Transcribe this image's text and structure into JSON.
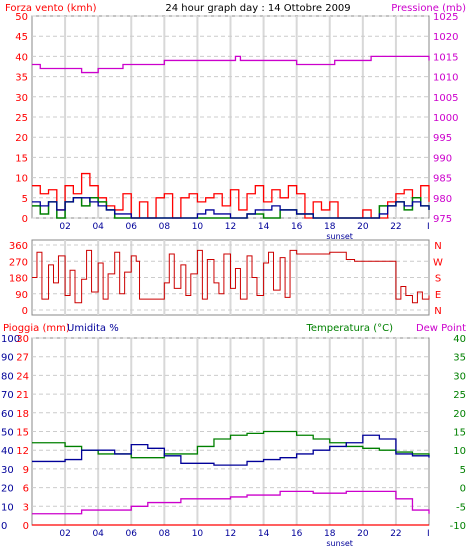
{
  "chart_data": [
    {
      "type": "line",
      "title": "24 hour graph day : 14 Ottobre 2009",
      "ylabel_left": "Forza vento (kmh)",
      "ylabel_right": "Pressione (mb)",
      "xlim": [
        0,
        24
      ],
      "ylim_left": [
        0,
        50
      ],
      "ylim_right": [
        975,
        1025
      ],
      "yticks_left": [
        0,
        5,
        10,
        15,
        20,
        25,
        30,
        35,
        40,
        45,
        50
      ],
      "yticks_right": [
        975,
        980,
        985,
        990,
        995,
        1000,
        1005,
        1010,
        1015,
        1020,
        1025
      ],
      "xticks": [
        2,
        4,
        6,
        8,
        10,
        12,
        14,
        16,
        18,
        20,
        22
      ],
      "xtick_labels": [
        "02",
        "04",
        "06",
        "08",
        "10",
        "12",
        "14",
        "16",
        "18",
        "20",
        "22"
      ],
      "xmark_label": "sunset",
      "xmark_at": 18.6,
      "end_tick_label": "I",
      "grid": true,
      "series": [
        {
          "role": "pressione",
          "color": "#cc00cc",
          "x": [
            0,
            0.5,
            1,
            2,
            3,
            3.4,
            4,
            5,
            5.5,
            6,
            8,
            10,
            11,
            12,
            12.3,
            12.6,
            14,
            15.5,
            16,
            17.5,
            18.3,
            19,
            20.5,
            21.5,
            22.5,
            23.5,
            24
          ],
          "y": [
            1013,
            1012,
            1012,
            1012,
            1011,
            1011,
            1012,
            1012,
            1013,
            1013,
            1014,
            1014,
            1014,
            1014,
            1015,
            1014,
            1014,
            1014,
            1013,
            1013,
            1014,
            1014,
            1015,
            1015,
            1015,
            1015,
            1014
          ]
        },
        {
          "role": "gust",
          "color": "#ff0000",
          "x": [
            0,
            0.5,
            1,
            1.5,
            2,
            2.5,
            3,
            3.5,
            4,
            4.5,
            5,
            5.5,
            6,
            6.5,
            7,
            7.5,
            8,
            8.5,
            9,
            9.5,
            10,
            10.5,
            11,
            11.5,
            12,
            12.5,
            13,
            13.5,
            14,
            14.5,
            15,
            15.5,
            16,
            16.5,
            17,
            17.5,
            18,
            18.5,
            19,
            19.5,
            20,
            20.5,
            21,
            21.5,
            22,
            22.5,
            23,
            23.5,
            24
          ],
          "y": [
            8,
            6,
            7,
            2,
            8,
            6,
            11,
            8,
            5,
            3,
            2,
            6,
            0,
            4,
            0,
            5,
            6,
            0,
            5,
            6,
            4,
            5,
            6,
            3,
            7,
            2,
            6,
            8,
            4,
            7,
            5,
            8,
            6,
            0,
            4,
            2,
            4,
            0,
            0,
            0,
            2,
            0,
            0,
            4,
            6,
            7,
            5,
            8,
            4
          ]
        },
        {
          "role": "wind",
          "color": "#008000",
          "x": [
            0,
            0.5,
            1,
            1.5,
            2,
            2.5,
            3,
            3.5,
            4,
            4.5,
            5,
            5.5,
            6,
            7,
            8,
            9,
            10,
            11,
            12,
            13,
            14,
            15,
            16,
            17,
            18,
            19,
            20,
            21,
            22,
            22.5,
            23,
            23.5,
            24
          ],
          "y": [
            3,
            1,
            4,
            0,
            4,
            5,
            3,
            5,
            4,
            2,
            0,
            0,
            0,
            0,
            0,
            0,
            0,
            0,
            0,
            1,
            0,
            2,
            1,
            0,
            0,
            0,
            0,
            3,
            4,
            2,
            5,
            3,
            2
          ]
        },
        {
          "role": "wind-avg",
          "color": "#000099",
          "x": [
            0,
            0.5,
            1,
            1.5,
            2,
            2.5,
            3,
            3.5,
            4,
            4.5,
            5,
            5.5,
            6,
            7,
            8,
            9,
            10,
            10.5,
            11,
            12,
            13,
            13.5,
            14,
            14.5,
            15,
            16,
            17,
            18,
            19,
            20,
            21,
            21.5,
            22,
            22.5,
            23,
            23.5,
            24
          ],
          "y": [
            4,
            3,
            4,
            2,
            4,
            5,
            5,
            4,
            3,
            2,
            1,
            1,
            0,
            0,
            0,
            0,
            1,
            2,
            1,
            0,
            1,
            2,
            2,
            3,
            2,
            1,
            0,
            0,
            0,
            0,
            1,
            3,
            4,
            3,
            4,
            3,
            2
          ]
        }
      ]
    },
    {
      "type": "line",
      "ylabel_right_letters": [
        "N",
        "W",
        "S",
        "E",
        "N"
      ],
      "xlim": [
        0,
        24
      ],
      "ylim": [
        0,
        360
      ],
      "yticks": [
        0,
        90,
        180,
        270,
        360
      ],
      "grid": true,
      "series": [
        {
          "role": "direzione",
          "color": "#cc0000",
          "x": [
            0,
            0.3,
            0.6,
            1,
            1.3,
            1.6,
            2,
            2.3,
            2.6,
            3,
            3.3,
            3.6,
            4,
            4.3,
            4.6,
            5,
            5.3,
            5.6,
            6,
            6.3,
            6.5,
            7.5,
            8,
            8.3,
            8.6,
            9,
            9.3,
            9.6,
            10,
            10.3,
            10.6,
            11,
            11.3,
            11.6,
            12,
            12.3,
            12.6,
            13,
            13.3,
            13.6,
            14,
            14.3,
            14.6,
            15,
            15.3,
            15.6,
            16,
            16.5,
            17,
            18,
            19,
            19.5,
            20,
            21,
            21.5,
            22,
            22.3,
            22.6,
            23,
            23.3,
            23.6,
            24
          ],
          "y": [
            180,
            320,
            60,
            250,
            150,
            300,
            80,
            220,
            40,
            170,
            330,
            100,
            260,
            60,
            200,
            320,
            90,
            210,
            300,
            270,
            60,
            60,
            150,
            310,
            120,
            250,
            80,
            200,
            330,
            60,
            280,
            150,
            90,
            310,
            120,
            230,
            60,
            300,
            180,
            80,
            260,
            320,
            110,
            290,
            70,
            330,
            310,
            310,
            310,
            320,
            280,
            270,
            270,
            270,
            270,
            60,
            130,
            80,
            40,
            100,
            60,
            80
          ]
        }
      ]
    },
    {
      "type": "line",
      "ylabel_left": "Pioggia (mm)",
      "ylabel_left2": "Umidita %",
      "ylabel_right": "Temperatura (°C)",
      "ylabel_right2": "Dew Point",
      "xlim": [
        0,
        24
      ],
      "ylim_temp": [
        -10,
        40
      ],
      "ylim_hum": [
        0,
        100
      ],
      "ylim_rain": [
        0,
        30
      ],
      "yticks_temp": [
        -10,
        -5,
        0,
        5,
        10,
        15,
        20,
        25,
        30,
        35,
        40
      ],
      "yticks_hum": [
        0,
        10,
        20,
        30,
        40,
        50,
        60,
        70,
        80,
        90,
        100
      ],
      "yticks_rain": [
        0,
        3,
        6,
        9,
        12,
        15,
        18,
        21,
        24,
        27,
        30
      ],
      "xticks": [
        2,
        4,
        6,
        8,
        10,
        12,
        14,
        16,
        18,
        20,
        22
      ],
      "xtick_labels": [
        "02",
        "04",
        "06",
        "08",
        "10",
        "12",
        "14",
        "16",
        "18",
        "20",
        "22"
      ],
      "xmark_label": "sunset",
      "xmark_at": 18.6,
      "end_tick_label": "I",
      "grid": true,
      "series": [
        {
          "role": "temperatura",
          "color": "#008000",
          "x": [
            0,
            1,
            2,
            3,
            4,
            5,
            6,
            7,
            8,
            9,
            10,
            11,
            12,
            13,
            14,
            15,
            16,
            17,
            18,
            19,
            20,
            21,
            22,
            23,
            24
          ],
          "y": [
            12,
            12,
            11,
            10,
            9,
            9,
            8,
            8,
            9,
            9,
            11,
            13,
            14,
            14.5,
            15,
            15,
            14,
            13,
            12,
            11,
            10.5,
            10,
            9.5,
            9,
            8.5
          ]
        },
        {
          "role": "umidita",
          "color": "#000099",
          "x": [
            0,
            1,
            2,
            3,
            4,
            5,
            6,
            7,
            8,
            9,
            10,
            11,
            12,
            13,
            14,
            15,
            16,
            17,
            18,
            19,
            20,
            21,
            22,
            23,
            24
          ],
          "y": [
            34,
            34,
            35,
            40,
            40,
            38,
            43,
            41,
            37,
            33,
            33,
            32,
            32,
            34,
            35,
            36,
            38,
            40,
            42,
            44,
            48,
            46,
            38,
            37,
            36
          ]
        },
        {
          "role": "dew-point",
          "color": "#cc00cc",
          "x": [
            0,
            1,
            2,
            3,
            4,
            5,
            6,
            7,
            8,
            9,
            10,
            11,
            12,
            13,
            14,
            15,
            16,
            17,
            18,
            19,
            20,
            21,
            22,
            23,
            24
          ],
          "y": [
            -7,
            -7,
            -7,
            -6,
            -6,
            -6,
            -5,
            -4,
            -4,
            -3,
            -3,
            -3,
            -2.5,
            -2,
            -2,
            -1,
            -1,
            -1.5,
            -1.5,
            -1,
            -1,
            -1,
            -3,
            -6,
            -7
          ]
        },
        {
          "role": "pioggia",
          "color": "#ff0000",
          "x": [
            0,
            24
          ],
          "y": [
            0,
            0
          ]
        }
      ]
    }
  ]
}
